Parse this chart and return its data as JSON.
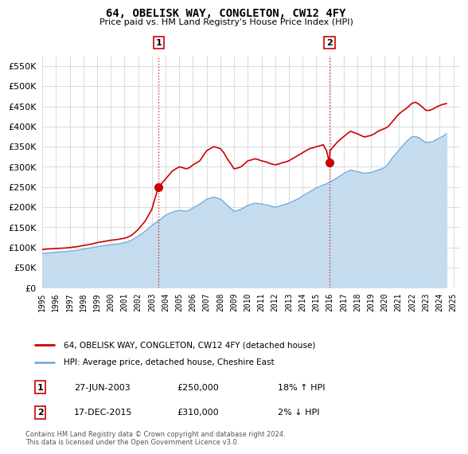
{
  "title": "64, OBELISK WAY, CONGLETON, CW12 4FY",
  "subtitle": "Price paid vs. HM Land Registry's House Price Index (HPI)",
  "ylabel_ticks": [
    0,
    50000,
    100000,
    150000,
    200000,
    250000,
    300000,
    350000,
    400000,
    450000,
    500000,
    550000
  ],
  "ylim": [
    0,
    575000
  ],
  "xlim_start": 1995.0,
  "xlim_end": 2025.5,
  "red_line_color": "#cc0000",
  "blue_line_color": "#7aaddb",
  "blue_fill_color": "#c5dcef",
  "point1_x": 2003.49,
  "point1_y": 250000,
  "point2_x": 2015.96,
  "point2_y": 310000,
  "point1_label": "1",
  "point2_label": "2",
  "vline_color": "#cc0000",
  "grid_color": "#dddddd",
  "background_color": "#ffffff",
  "legend_line1": "64, OBELISK WAY, CONGLETON, CW12 4FY (detached house)",
  "legend_line2": "HPI: Average price, detached house, Cheshire East",
  "table_row1": [
    "1",
    "27-JUN-2003",
    "£250,000",
    "18% ↑ HPI"
  ],
  "table_row2": [
    "2",
    "17-DEC-2015",
    "£310,000",
    "2% ↓ HPI"
  ],
  "footer": "Contains HM Land Registry data © Crown copyright and database right 2024.\nThis data is licensed under the Open Government Licence v3.0.",
  "red_hpi_data": [
    [
      1995.0,
      95000
    ],
    [
      1995.25,
      96000
    ],
    [
      1995.5,
      96500
    ],
    [
      1995.75,
      97000
    ],
    [
      1996.0,
      97500
    ],
    [
      1996.25,
      98000
    ],
    [
      1996.5,
      98500
    ],
    [
      1996.75,
      99000
    ],
    [
      1997.0,
      100000
    ],
    [
      1997.25,
      101000
    ],
    [
      1997.5,
      102000
    ],
    [
      1997.75,
      103500
    ],
    [
      1998.0,
      105000
    ],
    [
      1998.25,
      106500
    ],
    [
      1998.5,
      108000
    ],
    [
      1998.75,
      110000
    ],
    [
      1999.0,
      112000
    ],
    [
      1999.25,
      113500
    ],
    [
      1999.5,
      115000
    ],
    [
      1999.75,
      116500
    ],
    [
      2000.0,
      118000
    ],
    [
      2000.25,
      119000
    ],
    [
      2000.5,
      120000
    ],
    [
      2000.75,
      121500
    ],
    [
      2001.0,
      123000
    ],
    [
      2001.25,
      126000
    ],
    [
      2001.5,
      130000
    ],
    [
      2001.75,
      137000
    ],
    [
      2002.0,
      145000
    ],
    [
      2002.25,
      155000
    ],
    [
      2002.5,
      165000
    ],
    [
      2002.75,
      180000
    ],
    [
      2003.0,
      195000
    ],
    [
      2003.25,
      225000
    ],
    [
      2003.49,
      250000
    ],
    [
      2003.75,
      260000
    ],
    [
      2004.0,
      270000
    ],
    [
      2004.25,
      280000
    ],
    [
      2004.5,
      290000
    ],
    [
      2004.75,
      295000
    ],
    [
      2005.0,
      300000
    ],
    [
      2005.25,
      298000
    ],
    [
      2005.5,
      295000
    ],
    [
      2005.75,
      298000
    ],
    [
      2006.0,
      305000
    ],
    [
      2006.25,
      310000
    ],
    [
      2006.5,
      315000
    ],
    [
      2006.75,
      328000
    ],
    [
      2007.0,
      340000
    ],
    [
      2007.25,
      345000
    ],
    [
      2007.5,
      350000
    ],
    [
      2007.75,
      348000
    ],
    [
      2008.0,
      345000
    ],
    [
      2008.25,
      335000
    ],
    [
      2008.5,
      320000
    ],
    [
      2008.75,
      308000
    ],
    [
      2009.0,
      295000
    ],
    [
      2009.25,
      297000
    ],
    [
      2009.5,
      300000
    ],
    [
      2009.75,
      307000
    ],
    [
      2010.0,
      315000
    ],
    [
      2010.25,
      317000
    ],
    [
      2010.5,
      320000
    ],
    [
      2010.75,
      318000
    ],
    [
      2011.0,
      315000
    ],
    [
      2011.25,
      313000
    ],
    [
      2011.5,
      310000
    ],
    [
      2011.75,
      307000
    ],
    [
      2012.0,
      305000
    ],
    [
      2012.25,
      307000
    ],
    [
      2012.5,
      310000
    ],
    [
      2012.75,
      312000
    ],
    [
      2013.0,
      315000
    ],
    [
      2013.25,
      320000
    ],
    [
      2013.5,
      325000
    ],
    [
      2013.75,
      330000
    ],
    [
      2014.0,
      335000
    ],
    [
      2014.25,
      340000
    ],
    [
      2014.5,
      345000
    ],
    [
      2014.75,
      347000
    ],
    [
      2015.0,
      350000
    ],
    [
      2015.25,
      352000
    ],
    [
      2015.5,
      355000
    ],
    [
      2015.75,
      340000
    ],
    [
      2015.96,
      310000
    ],
    [
      2016.0,
      340000
    ],
    [
      2016.25,
      350000
    ],
    [
      2016.5,
      360000
    ],
    [
      2016.75,
      368000
    ],
    [
      2017.0,
      375000
    ],
    [
      2017.25,
      382000
    ],
    [
      2017.5,
      388000
    ],
    [
      2017.75,
      385000
    ],
    [
      2018.0,
      382000
    ],
    [
      2018.25,
      378000
    ],
    [
      2018.5,
      374000
    ],
    [
      2018.75,
      376000
    ],
    [
      2019.0,
      378000
    ],
    [
      2019.25,
      382000
    ],
    [
      2019.5,
      388000
    ],
    [
      2019.75,
      392000
    ],
    [
      2020.0,
      395000
    ],
    [
      2020.25,
      400000
    ],
    [
      2020.5,
      410000
    ],
    [
      2020.75,
      420000
    ],
    [
      2021.0,
      430000
    ],
    [
      2021.25,
      437000
    ],
    [
      2021.5,
      443000
    ],
    [
      2021.75,
      450000
    ],
    [
      2022.0,
      458000
    ],
    [
      2022.25,
      460000
    ],
    [
      2022.5,
      455000
    ],
    [
      2022.75,
      448000
    ],
    [
      2023.0,
      440000
    ],
    [
      2023.25,
      440000
    ],
    [
      2023.5,
      443000
    ],
    [
      2023.75,
      448000
    ],
    [
      2024.0,
      452000
    ],
    [
      2024.25,
      455000
    ],
    [
      2024.5,
      457000
    ]
  ],
  "blue_hpi_data": [
    [
      1995.0,
      85000
    ],
    [
      1995.25,
      86000
    ],
    [
      1995.5,
      87000
    ],
    [
      1995.75,
      87500
    ],
    [
      1996.0,
      88000
    ],
    [
      1996.25,
      89000
    ],
    [
      1996.5,
      89500
    ],
    [
      1996.75,
      90000
    ],
    [
      1997.0,
      91000
    ],
    [
      1997.25,
      92000
    ],
    [
      1997.5,
      93000
    ],
    [
      1997.75,
      94500
    ],
    [
      1998.0,
      96000
    ],
    [
      1998.25,
      97500
    ],
    [
      1998.5,
      99000
    ],
    [
      1998.75,
      100500
    ],
    [
      1999.0,
      102000
    ],
    [
      1999.25,
      103500
    ],
    [
      1999.5,
      105000
    ],
    [
      1999.75,
      106000
    ],
    [
      2000.0,
      107000
    ],
    [
      2000.25,
      108000
    ],
    [
      2000.5,
      109000
    ],
    [
      2000.75,
      110500
    ],
    [
      2001.0,
      112000
    ],
    [
      2001.25,
      115000
    ],
    [
      2001.5,
      118000
    ],
    [
      2001.75,
      123000
    ],
    [
      2002.0,
      128000
    ],
    [
      2002.25,
      134000
    ],
    [
      2002.5,
      140000
    ],
    [
      2002.75,
      147000
    ],
    [
      2003.0,
      155000
    ],
    [
      2003.25,
      161000
    ],
    [
      2003.5,
      167000
    ],
    [
      2003.75,
      173000
    ],
    [
      2004.0,
      180000
    ],
    [
      2004.25,
      184000
    ],
    [
      2004.5,
      188000
    ],
    [
      2004.75,
      190000
    ],
    [
      2005.0,
      192000
    ],
    [
      2005.25,
      191000
    ],
    [
      2005.5,
      190000
    ],
    [
      2005.75,
      193000
    ],
    [
      2006.0,
      198000
    ],
    [
      2006.25,
      203000
    ],
    [
      2006.5,
      208000
    ],
    [
      2006.75,
      214000
    ],
    [
      2007.0,
      220000
    ],
    [
      2007.25,
      222000
    ],
    [
      2007.5,
      225000
    ],
    [
      2007.75,
      223000
    ],
    [
      2008.0,
      220000
    ],
    [
      2008.25,
      213000
    ],
    [
      2008.5,
      205000
    ],
    [
      2008.75,
      197000
    ],
    [
      2009.0,
      190000
    ],
    [
      2009.25,
      192000
    ],
    [
      2009.5,
      195000
    ],
    [
      2009.75,
      199000
    ],
    [
      2010.0,
      205000
    ],
    [
      2010.25,
      207000
    ],
    [
      2010.5,
      210000
    ],
    [
      2010.75,
      209000
    ],
    [
      2011.0,
      208000
    ],
    [
      2011.25,
      206000
    ],
    [
      2011.5,
      205000
    ],
    [
      2011.75,
      202000
    ],
    [
      2012.0,
      200000
    ],
    [
      2012.25,
      202000
    ],
    [
      2012.5,
      205000
    ],
    [
      2012.75,
      207000
    ],
    [
      2013.0,
      210000
    ],
    [
      2013.25,
      214000
    ],
    [
      2013.5,
      218000
    ],
    [
      2013.75,
      222000
    ],
    [
      2014.0,
      228000
    ],
    [
      2014.25,
      233000
    ],
    [
      2014.5,
      238000
    ],
    [
      2014.75,
      243000
    ],
    [
      2015.0,
      248000
    ],
    [
      2015.25,
      251000
    ],
    [
      2015.5,
      255000
    ],
    [
      2015.75,
      258000
    ],
    [
      2015.96,
      262000
    ],
    [
      2016.0,
      263000
    ],
    [
      2016.25,
      267000
    ],
    [
      2016.5,
      272000
    ],
    [
      2016.75,
      278000
    ],
    [
      2017.0,
      283000
    ],
    [
      2017.25,
      288000
    ],
    [
      2017.5,
      292000
    ],
    [
      2017.75,
      290000
    ],
    [
      2018.0,
      288000
    ],
    [
      2018.25,
      286000
    ],
    [
      2018.5,
      284000
    ],
    [
      2018.75,
      285000
    ],
    [
      2019.0,
      286000
    ],
    [
      2019.25,
      289000
    ],
    [
      2019.5,
      292000
    ],
    [
      2019.75,
      295000
    ],
    [
      2020.0,
      298000
    ],
    [
      2020.25,
      308000
    ],
    [
      2020.5,
      320000
    ],
    [
      2020.75,
      330000
    ],
    [
      2021.0,
      340000
    ],
    [
      2021.25,
      350000
    ],
    [
      2021.5,
      360000
    ],
    [
      2021.75,
      368000
    ],
    [
      2022.0,
      375000
    ],
    [
      2022.25,
      375000
    ],
    [
      2022.5,
      372000
    ],
    [
      2022.75,
      366000
    ],
    [
      2023.0,
      360000
    ],
    [
      2023.25,
      361000
    ],
    [
      2023.5,
      363000
    ],
    [
      2023.75,
      367000
    ],
    [
      2024.0,
      372000
    ],
    [
      2024.25,
      376000
    ],
    [
      2024.5,
      382000
    ]
  ]
}
